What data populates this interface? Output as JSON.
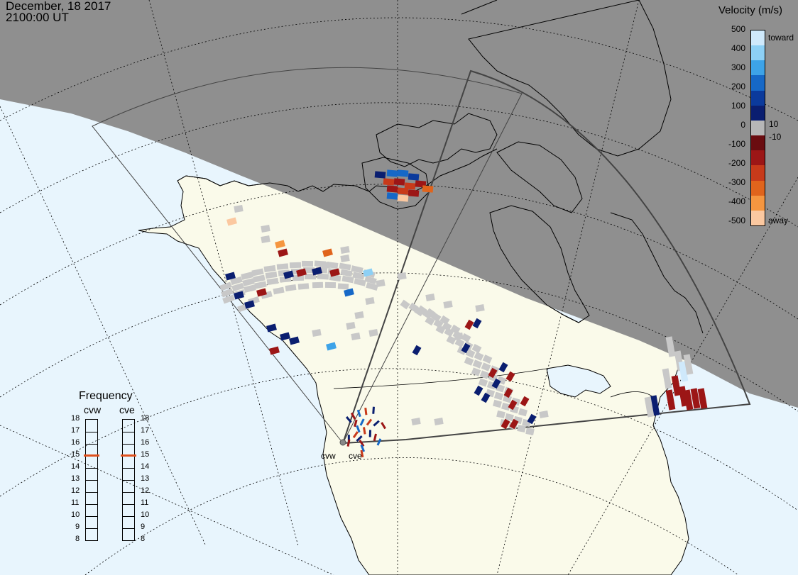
{
  "header": {
    "date": "December, 18 2017",
    "time": "2100:00 UT"
  },
  "colorbar": {
    "title": "Velocity (m/s)",
    "ticks": [
      "500",
      "400",
      "300",
      "200",
      "100",
      "10",
      "0",
      "-10",
      "-100",
      "-200",
      "-300",
      "-400",
      "-500"
    ],
    "toward_label": "toward",
    "away_label": "away",
    "colors": [
      "#cfe9fb",
      "#8dd0f5",
      "#3da3e8",
      "#1668c7",
      "#0b3a9c",
      "#0a1e70",
      "#b7b7b7",
      "#6a0c10",
      "#9c1616",
      "#c83a1a",
      "#e0641c",
      "#f59640",
      "#fbc8a0"
    ]
  },
  "frequency_panel": {
    "title": "Frequency",
    "radars": [
      {
        "name": "cvw",
        "value": 15
      },
      {
        "name": "cve",
        "value": 15
      }
    ],
    "scale": [
      "18",
      "17",
      "16",
      "15",
      "14",
      "13",
      "12",
      "11",
      "10",
      "9",
      "8"
    ],
    "marker_color": "#e0501c"
  },
  "map": {
    "radar_labels": [
      "cvw",
      "cve"
    ],
    "ground_scatter_color": "#c8c8c8",
    "night_shade_color": "#8f8f8f",
    "land_color": "#fafaea",
    "ocean_color": "#e8f5fd"
  }
}
